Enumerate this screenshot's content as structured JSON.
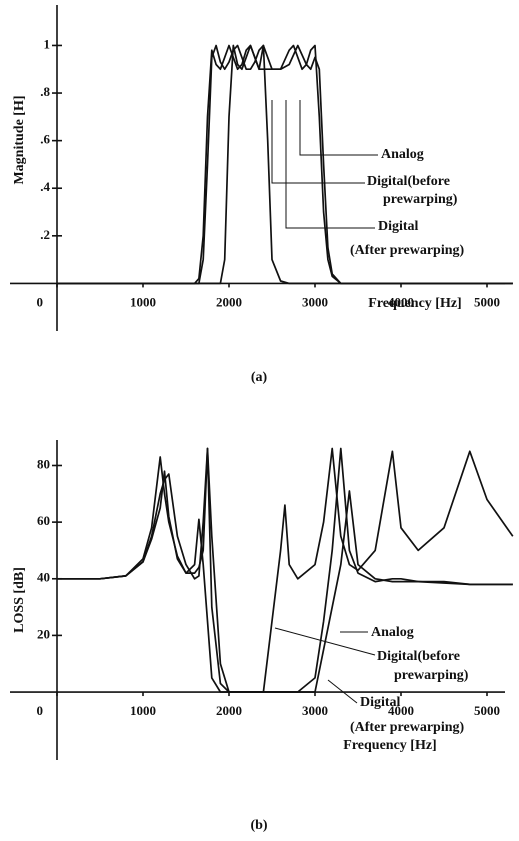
{
  "chart_data": [
    {
      "type": "line",
      "caption": "(a)",
      "xlabel": "Frequency [Hz]",
      "ylabel": "Magnitude [H]",
      "x": [
        0,
        1000,
        1500,
        1600,
        1650,
        1700,
        1750,
        1800,
        1850,
        1900,
        1950,
        2000,
        2050,
        2100,
        2150,
        2200,
        2250,
        2300,
        2350,
        2400,
        2450,
        2500,
        2600,
        2700,
        2750,
        2800,
        2850,
        2900,
        2950,
        3000,
        3050,
        3100,
        3150,
        3200,
        3300,
        4000,
        5000,
        5300
      ],
      "xlim": [
        0,
        5000
      ],
      "xticks": [
        0,
        1000,
        2000,
        3000,
        4000,
        5000
      ],
      "ylim": [
        -0.2,
        1.17
      ],
      "yticks": [
        {
          "value": 0.2,
          "label": ".2"
        },
        {
          "value": 0.4,
          "label": ".4"
        },
        {
          "value": 0.6,
          "label": ".6"
        },
        {
          "value": 0.8,
          "label": ".8"
        },
        1
      ],
      "series": [
        {
          "name": "Analog",
          "color": "#111",
          "values": [
            0,
            0,
            0,
            0,
            0.02,
            0.2,
            0.7,
            0.98,
            0.92,
            0.9,
            0.95,
            1,
            0.95,
            0.9,
            0.92,
            0.98,
            1,
            0.95,
            0.9,
            0.9,
            0.9,
            0.9,
            0.9,
            0.98,
            1,
            0.95,
            0.9,
            0.92,
            0.98,
            1,
            0.7,
            0.3,
            0.1,
            0.03,
            0,
            0,
            0,
            0
          ]
        },
        {
          "name": [
            "Digital(before",
            "prewarping)"
          ],
          "color": "#111",
          "values": [
            0,
            0,
            0,
            0,
            0,
            0,
            0,
            0,
            0,
            0,
            0.1,
            0.7,
            1,
            0.92,
            0.9,
            0.95,
            1,
            0.95,
            0.9,
            1,
            0.6,
            0.1,
            0.01,
            0,
            0,
            0,
            0,
            0,
            0,
            0,
            0,
            0,
            0,
            0,
            0,
            0,
            0,
            0
          ]
        },
        {
          "name": [
            "Digital",
            "(After prewarping)"
          ],
          "color": "#111",
          "values": [
            0,
            0,
            0,
            0,
            0,
            0.1,
            0.5,
            0.95,
            1,
            0.93,
            0.9,
            0.93,
            0.98,
            1,
            0.95,
            0.9,
            0.9,
            0.93,
            0.98,
            1,
            0.95,
            0.9,
            0.9,
            0.92,
            0.96,
            1,
            0.96,
            0.92,
            0.9,
            0.95,
            0.9,
            0.5,
            0.15,
            0.04,
            0,
            0,
            0,
            0
          ]
        }
      ]
    },
    {
      "type": "line",
      "caption": "(b)",
      "xlabel": "Frequency [Hz]",
      "ylabel": "LOSS [dB]",
      "x": [
        0,
        500,
        800,
        1000,
        1100,
        1200,
        1250,
        1300,
        1400,
        1500,
        1600,
        1650,
        1700,
        1750,
        1800,
        1900,
        2000,
        2400,
        2500,
        2600,
        2650,
        2700,
        2800,
        3000,
        3100,
        3200,
        3300,
        3400,
        3500,
        3700,
        3900,
        4000,
        4200,
        4500,
        4800,
        5000,
        5300
      ],
      "xlim": [
        0,
        5000
      ],
      "xticks": [
        0,
        1000,
        2000,
        3000,
        4000,
        5000
      ],
      "ylim": [
        -24,
        89
      ],
      "yticks": [
        20,
        40,
        60,
        80
      ],
      "series": [
        {
          "name": "Analog",
          "color": "#111",
          "values": [
            40,
            40,
            41,
            47,
            58,
            83,
            70,
            60,
            48,
            42,
            45,
            61,
            45,
            25,
            5,
            0,
            0,
            0,
            0,
            0,
            0,
            0,
            0,
            0,
            15,
            30,
            45,
            71,
            45,
            40,
            39,
            39,
            39,
            38.5,
            38,
            38,
            38
          ]
        },
        {
          "name": [
            "Digital(before",
            "prewarping)"
          ],
          "color": "#111",
          "values": [
            40,
            40,
            41,
            46,
            55,
            70,
            75,
            77,
            55,
            45,
            40,
            41,
            60,
            86,
            55,
            10,
            0,
            0,
            25,
            50,
            66,
            45,
            40,
            45,
            60,
            86,
            55,
            45,
            43,
            50,
            85,
            58,
            50,
            58,
            85,
            68,
            55
          ]
        },
        {
          "name": [
            "Digital",
            "(After prewarping)"
          ],
          "color": "#111",
          "values": [
            40,
            40,
            41,
            46,
            54,
            65,
            78,
            62,
            47,
            42,
            42,
            44,
            50,
            86,
            30,
            3,
            0,
            0,
            0,
            0,
            0,
            0,
            0,
            5,
            25,
            50,
            86,
            50,
            42,
            39,
            40,
            40,
            39,
            39,
            38,
            38,
            38
          ]
        }
      ]
    }
  ]
}
